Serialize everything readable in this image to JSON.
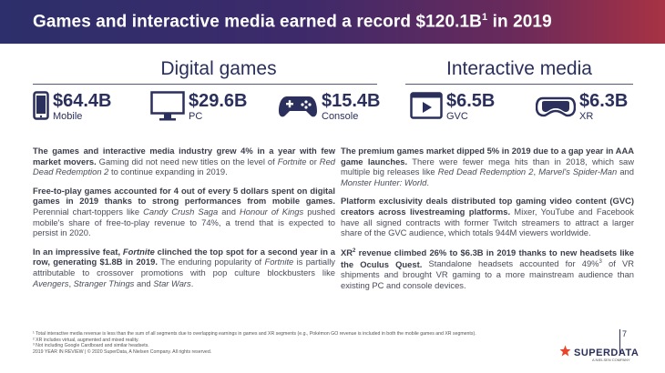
{
  "header": {
    "title": "Games and interactive media earned a record $120.1B",
    "title_sup": "1",
    "title_end": " in 2019"
  },
  "digital": {
    "title": "Digital games",
    "stats": [
      {
        "value": "$64.4B",
        "label": "Mobile",
        "icon": "mobile-phone-icon"
      },
      {
        "value": "$29.6B",
        "label": "PC",
        "icon": "pc-monitor-icon"
      },
      {
        "value": "$15.4B",
        "label": "Console",
        "icon": "gamepad-icon"
      }
    ]
  },
  "interactive": {
    "title": "Interactive media",
    "stats": [
      {
        "value": "$6.5B",
        "label": "GVC",
        "icon": "video-player-icon"
      },
      {
        "value": "$6.3B",
        "label": "XR",
        "icon": "vr-headset-icon"
      }
    ]
  },
  "left_col": {
    "p1_bold": "The games and interactive media industry grew 4% in a year with few market movers.",
    "p1_a": " Gaming did not need new titles on the level of ",
    "p1_i1": "Fortnite",
    "p1_b": " or ",
    "p1_i2": "Red Dead Redemption 2",
    "p1_c": " to continue expanding in 2019.",
    "p2_bold": "Free-to-play games accounted for 4 out of every 5 dollars spent on digital games in 2019 thanks to strong performances from mobile games.",
    "p2_a": " Perennial chart-toppers like ",
    "p2_i1": "Candy Crush Saga",
    "p2_b": " and ",
    "p2_i2": "Honour of Kings",
    "p2_c": " pushed mobile's share of free-to-play revenue to 74%, a trend that is expected to persist in 2020.",
    "p3_bold_a": "In an impressive feat, ",
    "p3_bold_i": "Fortnite",
    "p3_bold_b": " clinched the top spot for a second year in a row, generating $1.8B in 2019.",
    "p3_a": " The enduring popularity of ",
    "p3_i1": "Fortnite",
    "p3_b": " is partially attributable to crossover promotions with pop culture blockbusters like ",
    "p3_i2": "Avengers",
    "p3_c": ", ",
    "p3_i3": "Stranger Things",
    "p3_d": " and ",
    "p3_i4": "Star Wars",
    "p3_e": "."
  },
  "right_col": {
    "p1_bold": "The premium games market dipped 5% in 2019 due to a gap year in AAA game launches.",
    "p1_a": " There were fewer mega hits than in 2018, which saw multiple big releases like ",
    "p1_i1": "Red Dead Redemption 2",
    "p1_b": ", ",
    "p1_i2": "Marvel's Spider-Man",
    "p1_c": " and ",
    "p1_i3": "Monster Hunter: World",
    "p1_d": ".",
    "p2_bold": "Platform exclusivity deals distributed top gaming video content (GVC) creators across livestreaming platforms.",
    "p2_a": " Mixer, YouTube and Facebook have all signed contracts with former Twitch streamers to attract a larger share of the GVC audience, which totals 944M viewers worldwide.",
    "p3_bold_a": "XR",
    "p3_bold_sup": "2",
    "p3_bold_b": " revenue climbed 26% to $6.3B in 2019 thanks to new headsets like the Oculus Quest.",
    "p3_a": " Standalone headsets accounted for 49%",
    "p3_sup": "3",
    "p3_b": " of VR shipments and brought VR gaming to a more mainstream audience than existing PC and console devices."
  },
  "footnotes": [
    "¹ Total interactive media revenue is less than the sum of all segments due to overlapping earnings in games and XR segments (e.g., Pokémon GO revenue is included in both the mobile games and XR segments).",
    "² XR includes virtual, augmented and mixed reality.",
    "³ Not including Google Cardboard and similar headsets.",
    "2019 YEAR IN REVIEW  |  © 2020 SuperData, A Nielsen Company. All rights reserved."
  ],
  "page_number": "7",
  "brand": {
    "name": "SUPERDATA",
    "sub": "A NIELSEN COMPANY",
    "icon": "star-logo-icon",
    "color": "#e8452c"
  },
  "colors": {
    "navy": "#2a2f5c",
    "accent": "#a83244"
  }
}
